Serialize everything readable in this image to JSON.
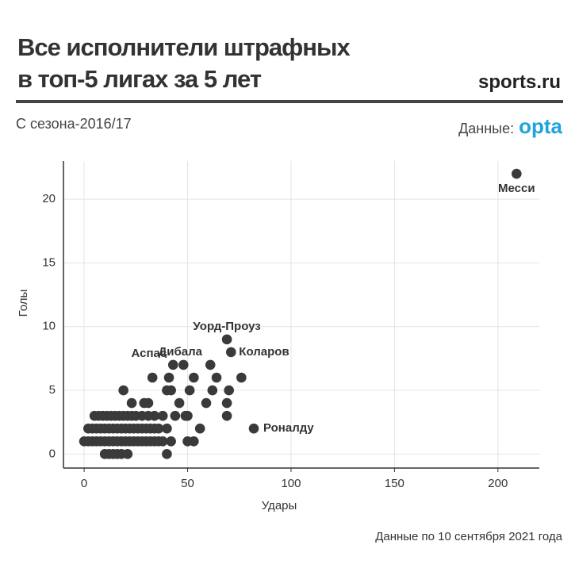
{
  "chart_data": {
    "type": "scatter",
    "title_lines": [
      "Все исполнители штрафных",
      "в топ-5 лигах за 5 лет"
    ],
    "subtitle": "С сезона-2016/17",
    "logo": "sports.ru",
    "source_label": "Данные:",
    "source_name": "opta",
    "footnote": "Данные по 10 сентября 2021 года",
    "xlabel": "Удары",
    "ylabel": "Голы",
    "color": "#3a3a3a",
    "grid": true,
    "xlim": [
      -10,
      220
    ],
    "ylim": [
      -1.1,
      23
    ],
    "xticks": [
      0,
      50,
      100,
      150,
      200
    ],
    "yticks": [
      0,
      5,
      10,
      15,
      20
    ],
    "x": [
      209,
      69,
      71,
      48,
      43,
      82,
      10,
      12,
      14,
      16,
      18,
      21,
      40,
      0,
      2,
      4,
      6,
      8,
      10,
      12,
      14,
      16,
      18,
      20,
      22,
      24,
      26,
      28,
      30,
      32,
      34,
      36,
      38,
      42,
      50,
      53,
      2,
      4,
      6,
      8,
      10,
      12,
      14,
      16,
      18,
      20,
      22,
      24,
      26,
      28,
      30,
      32,
      34,
      36,
      40,
      56,
      5,
      7,
      9,
      11,
      13,
      15,
      17,
      19,
      21,
      23,
      25,
      28,
      31,
      34,
      38,
      44,
      49,
      50,
      69,
      23,
      29,
      31,
      46,
      59,
      69,
      19,
      40,
      42,
      51,
      62,
      70,
      33,
      41,
      53,
      64,
      76,
      61
    ],
    "y": [
      22,
      9,
      8,
      7,
      7,
      2,
      0,
      0,
      0,
      0,
      0,
      0,
      0,
      1,
      1,
      1,
      1,
      1,
      1,
      1,
      1,
      1,
      1,
      1,
      1,
      1,
      1,
      1,
      1,
      1,
      1,
      1,
      1,
      1,
      1,
      1,
      2,
      2,
      2,
      2,
      2,
      2,
      2,
      2,
      2,
      2,
      2,
      2,
      2,
      2,
      2,
      2,
      2,
      2,
      2,
      2,
      3,
      3,
      3,
      3,
      3,
      3,
      3,
      3,
      3,
      3,
      3,
      3,
      3,
      3,
      3,
      3,
      3,
      3,
      3,
      4,
      4,
      4,
      4,
      4,
      4,
      5,
      5,
      5,
      5,
      5,
      5,
      6,
      6,
      6,
      6,
      6,
      7
    ],
    "point_labels": [
      "Месси",
      "Уорд-Проуз",
      "Коларов",
      "Дибала",
      "Аспас",
      "Роналду",
      null,
      null,
      null,
      null,
      null,
      null,
      null,
      null,
      null,
      null,
      null,
      null,
      null,
      null,
      null,
      null,
      null,
      null,
      null,
      null,
      null,
      null,
      null,
      null,
      null,
      null,
      null,
      null,
      null,
      null,
      null,
      null,
      null,
      null,
      null,
      null,
      null,
      null,
      null,
      null,
      null,
      null,
      null,
      null,
      null,
      null,
      null,
      null,
      null,
      null,
      null,
      null,
      null,
      null,
      null,
      null,
      null,
      null,
      null,
      null,
      null,
      null,
      null,
      null,
      null,
      null,
      null,
      null,
      null,
      null,
      null,
      null,
      null,
      null,
      null,
      null,
      null,
      null,
      null,
      null,
      null,
      null,
      null,
      null,
      null,
      null,
      null
    ]
  }
}
